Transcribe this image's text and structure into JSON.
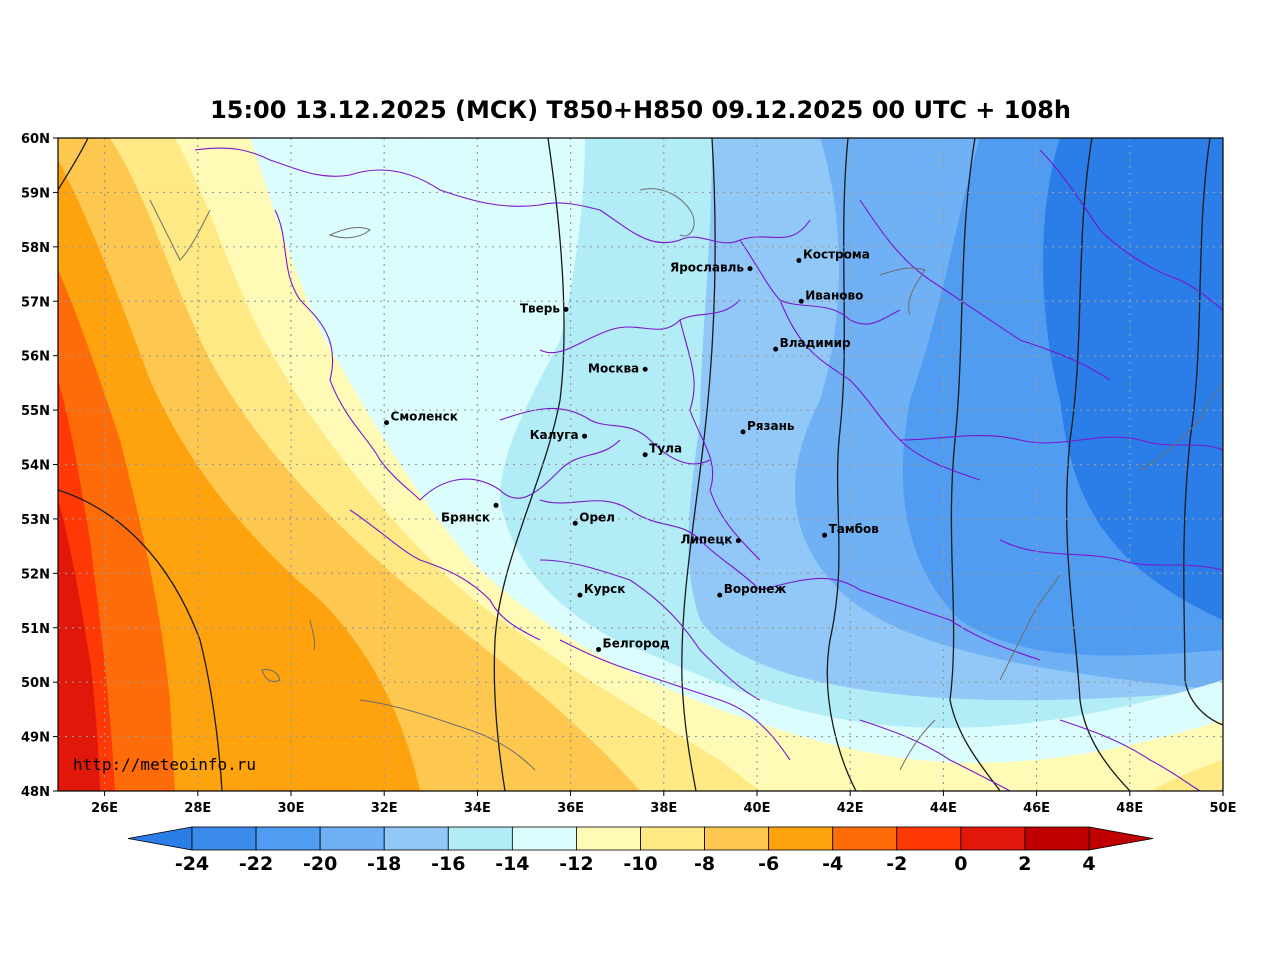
{
  "title": "15:00 13.12.2025 (МСК) T850+H850 09.12.2025 00 UTC + 108h",
  "source_url": "http://meteoinfo.ru",
  "map": {
    "lon_range": [
      25,
      50
    ],
    "lat_range": [
      48,
      60
    ],
    "lon_ticks": [
      "26E",
      "28E",
      "30E",
      "32E",
      "34E",
      "36E",
      "38E",
      "40E",
      "42E",
      "44E",
      "46E",
      "48E",
      "50E"
    ],
    "lat_ticks": [
      "48N",
      "49N",
      "50N",
      "51N",
      "52N",
      "53N",
      "54N",
      "55N",
      "56N",
      "57N",
      "58N",
      "59N",
      "60N"
    ],
    "grid": true
  },
  "cities": [
    {
      "name": "Ярославль",
      "lon": 39.85,
      "lat": 57.6
    },
    {
      "name": "Кострома",
      "lon": 40.9,
      "lat": 57.75
    },
    {
      "name": "Тверь",
      "lon": 35.9,
      "lat": 56.85
    },
    {
      "name": "Иваново",
      "lon": 40.95,
      "lat": 57.0
    },
    {
      "name": "Владимир",
      "lon": 40.4,
      "lat": 56.12
    },
    {
      "name": "Москва",
      "lon": 37.6,
      "lat": 55.75
    },
    {
      "name": "Смоленск",
      "lon": 32.05,
      "lat": 54.77
    },
    {
      "name": "Калуга",
      "lon": 36.3,
      "lat": 54.52
    },
    {
      "name": "Рязань",
      "lon": 39.7,
      "lat": 54.6
    },
    {
      "name": "Тула",
      "lon": 37.6,
      "lat": 54.18
    },
    {
      "name": "Брянск",
      "lon": 34.4,
      "lat": 53.25
    },
    {
      "name": "Орел",
      "lon": 36.1,
      "lat": 52.92
    },
    {
      "name": "Липецк",
      "lon": 39.6,
      "lat": 52.6
    },
    {
      "name": "Тамбов",
      "lon": 41.45,
      "lat": 52.7
    },
    {
      "name": "Курск",
      "lon": 36.2,
      "lat": 51.6
    },
    {
      "name": "Воронеж",
      "lon": 39.2,
      "lat": 51.6
    },
    {
      "name": "Белгород",
      "lon": 36.6,
      "lat": 50.6
    }
  ],
  "colorbar": {
    "labels": [
      "-24",
      "-22",
      "-20",
      "-18",
      "-16",
      "-14",
      "-12",
      "-10",
      "-8",
      "-6",
      "-4",
      "-2",
      "0",
      "2",
      "4"
    ],
    "colors": [
      "#2b7de8",
      "#3a8aeb",
      "#4f9cf0",
      "#70b0f4",
      "#91c8f7",
      "#b2ecf6",
      "#dcfdfd",
      "#fffbb6",
      "#fee984",
      "#fdc750",
      "#fea20d",
      "#fe6c0a",
      "#ff3805",
      "#e1170a",
      "#c00000"
    ],
    "extend_low_color": "#2b7de8",
    "extend_high_color": "#c00000"
  }
}
